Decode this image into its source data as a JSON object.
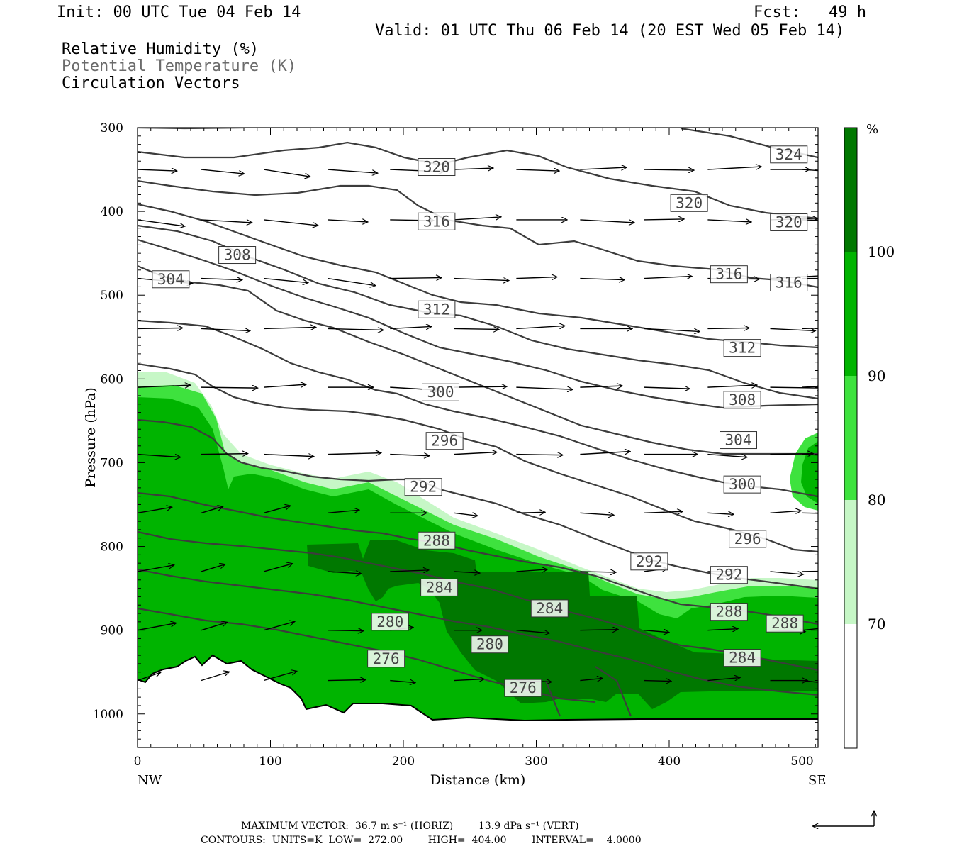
{
  "header": {
    "init": "Init: 00 UTC Tue 04 Feb 14",
    "fcst": "Fcst:   49 h",
    "valid": "Valid: 01 UTC Thu 06 Feb 14 (20 EST Wed 05 Feb 14)",
    "field1": "Relative Humidity (%)",
    "field2": "Potential Temperature (K)",
    "field3": "Circulation Vectors"
  },
  "footer": {
    "max_vector": "MAXIMUM VECTOR:  36.7 m s⁻¹ (HORIZ)        13.9 dPa s⁻¹ (VERT)",
    "contours": "CONTOURS:  UNITS=K  LOW=  272.00        HIGH=  404.00        INTERVAL=    4.0000"
  },
  "chart_data": {
    "type": "cross-section",
    "xlabel": "Distance (km)",
    "ylabel": "Pressure (hPa)",
    "xlim": [
      0,
      512
    ],
    "ylim": [
      1040,
      300
    ],
    "x_ticks": [
      "0",
      "100",
      "200",
      "300",
      "400",
      "500"
    ],
    "y_ticks": [
      "300",
      "400",
      "500",
      "600",
      "700",
      "800",
      "900",
      "1000"
    ],
    "x_end_labels": {
      "left": "NW",
      "right": "SE"
    },
    "colorbar": {
      "unit": "%",
      "levels": [
        "70",
        "80",
        "90",
        "100"
      ],
      "colors": [
        "#ffffff",
        "#c6f7c6",
        "#3ee23e",
        "#00b400",
        "#007800"
      ]
    },
    "theta_contour_labels": [
      {
        "text": "324",
        "x": 490,
        "p": 332
      },
      {
        "text": "320",
        "x": 225,
        "p": 347
      },
      {
        "text": "320",
        "x": 415,
        "p": 390
      },
      {
        "text": "320",
        "x": 490,
        "p": 413
      },
      {
        "text": "316",
        "x": 225,
        "p": 412
      },
      {
        "text": "316",
        "x": 445,
        "p": 475
      },
      {
        "text": "316",
        "x": 490,
        "p": 485
      },
      {
        "text": "308",
        "x": 75,
        "p": 452
      },
      {
        "text": "304",
        "x": 25,
        "p": 481
      },
      {
        "text": "312",
        "x": 225,
        "p": 517
      },
      {
        "text": "312",
        "x": 455,
        "p": 563
      },
      {
        "text": "300",
        "x": 228,
        "p": 616
      },
      {
        "text": "308",
        "x": 455,
        "p": 625
      },
      {
        "text": "296",
        "x": 231,
        "p": 674
      },
      {
        "text": "304",
        "x": 452,
        "p": 673
      },
      {
        "text": "292",
        "x": 215,
        "p": 729
      },
      {
        "text": "300",
        "x": 455,
        "p": 726
      },
      {
        "text": "296",
        "x": 459,
        "p": 791
      },
      {
        "text": "288",
        "x": 225,
        "p": 793
      },
      {
        "text": "292",
        "x": 385,
        "p": 818
      },
      {
        "text": "292",
        "x": 445,
        "p": 834
      },
      {
        "text": "284",
        "x": 227,
        "p": 849
      },
      {
        "text": "284",
        "x": 310,
        "p": 874
      },
      {
        "text": "288",
        "x": 445,
        "p": 878
      },
      {
        "text": "288",
        "x": 487,
        "p": 892
      },
      {
        "text": "280",
        "x": 190,
        "p": 890
      },
      {
        "text": "280",
        "x": 265,
        "p": 917
      },
      {
        "text": "284",
        "x": 455,
        "p": 933
      },
      {
        "text": "276",
        "x": 187,
        "p": 934
      },
      {
        "text": "276",
        "x": 290,
        "p": 969
      }
    ]
  }
}
